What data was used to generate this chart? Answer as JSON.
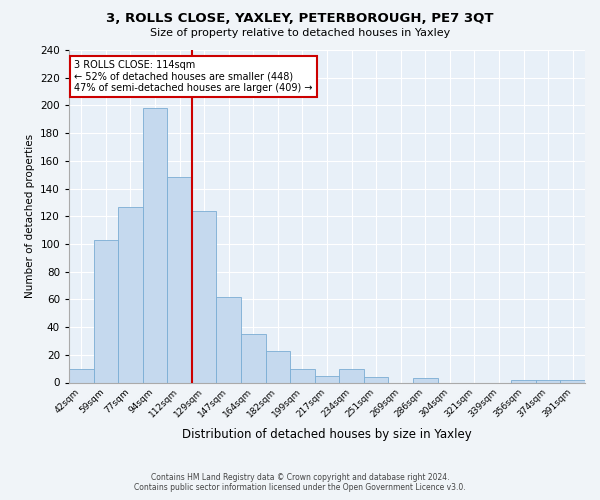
{
  "title": "3, ROLLS CLOSE, YAXLEY, PETERBOROUGH, PE7 3QT",
  "subtitle": "Size of property relative to detached houses in Yaxley",
  "xlabel": "Distribution of detached houses by size in Yaxley",
  "ylabel": "Number of detached properties",
  "bar_color": "#c5d9ee",
  "bar_edge_color": "#7aadd4",
  "background_color": "#e8f0f8",
  "grid_color": "#ffffff",
  "categories": [
    "42sqm",
    "59sqm",
    "77sqm",
    "94sqm",
    "112sqm",
    "129sqm",
    "147sqm",
    "164sqm",
    "182sqm",
    "199sqm",
    "217sqm",
    "234sqm",
    "251sqm",
    "269sqm",
    "286sqm",
    "304sqm",
    "321sqm",
    "339sqm",
    "356sqm",
    "374sqm",
    "391sqm"
  ],
  "values": [
    10,
    103,
    127,
    198,
    148,
    124,
    62,
    35,
    23,
    10,
    5,
    10,
    4,
    0,
    3,
    0,
    0,
    0,
    2,
    2,
    2
  ],
  "property_bin_index": 4,
  "annotation_title": "3 ROLLS CLOSE: 114sqm",
  "annotation_line1": "← 52% of detached houses are smaller (448)",
  "annotation_line2": "47% of semi-detached houses are larger (409) →",
  "vline_color": "#cc0000",
  "annotation_box_facecolor": "#ffffff",
  "annotation_border_color": "#cc0000",
  "footer_line1": "Contains HM Land Registry data © Crown copyright and database right 2024.",
  "footer_line2": "Contains public sector information licensed under the Open Government Licence v3.0.",
  "ylim": [
    0,
    240
  ],
  "yticks": [
    0,
    20,
    40,
    60,
    80,
    100,
    120,
    140,
    160,
    180,
    200,
    220,
    240
  ],
  "fig_facecolor": "#f0f4f8"
}
